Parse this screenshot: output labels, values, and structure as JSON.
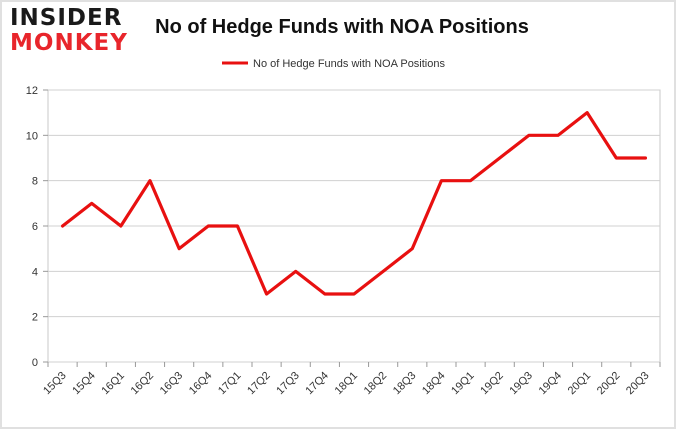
{
  "brand": {
    "line1": "INSIDER",
    "line2": "MONKEY"
  },
  "chart_data": {
    "type": "line",
    "title": "No of Hedge Funds with NOA Positions",
    "xlabel": "",
    "ylabel": "",
    "ylim": [
      0,
      12
    ],
    "yticks": [
      0,
      2,
      4,
      6,
      8,
      10,
      12
    ],
    "grid": true,
    "legend_position": "top-center",
    "categories": [
      "15Q3",
      "15Q4",
      "16Q1",
      "16Q2",
      "16Q3",
      "16Q4",
      "17Q1",
      "17Q2",
      "17Q3",
      "17Q4",
      "18Q1",
      "18Q2",
      "18Q3",
      "18Q4",
      "19Q1",
      "19Q2",
      "19Q3",
      "19Q4",
      "20Q1",
      "20Q2",
      "20Q3"
    ],
    "series": [
      {
        "name": "No of Hedge Funds with NOA Positions",
        "color": "#e81010",
        "values": [
          6,
          7,
          6,
          8,
          5,
          6,
          6,
          3,
          4,
          3,
          3,
          4,
          5,
          8,
          8,
          9,
          10,
          10,
          11,
          9,
          9
        ]
      }
    ]
  }
}
